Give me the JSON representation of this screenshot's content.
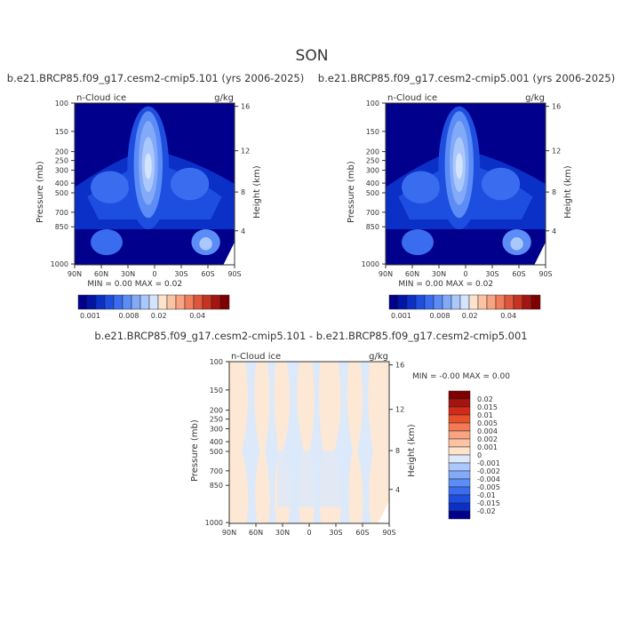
{
  "page_title": "SON",
  "colors": {
    "upper_scale": [
      "#00008c",
      "#0014a6",
      "#0a30c8",
      "#1e4ee0",
      "#3a6cf0",
      "#5c8cf5",
      "#82aaf8",
      "#aac8fb",
      "#d4e4fd",
      "#fde3cc",
      "#fcc3a3",
      "#f8a382",
      "#f07d5c",
      "#e0563a",
      "#c63320",
      "#a41410",
      "#7e0000"
    ],
    "diff_scale": [
      "#fde8d6",
      "#dbe9fb"
    ]
  },
  "chart_data": [
    {
      "type": "heatmap",
      "title": "b.e21.BRCP85.f09_g17.cesm2-cmip5.101 (yrs 2006-2025)",
      "subtitle_left": "n-Cloud ice",
      "subtitle_right": "g/kg",
      "ylabel": "Pressure (mb)",
      "ylabel_right": "Height (km)",
      "xticks": [
        "90N",
        "60N",
        "30N",
        "0",
        "30S",
        "60S",
        "90S"
      ],
      "yticks": [
        "100",
        "150",
        "200",
        "250",
        "300",
        "400",
        "500",
        "700",
        "850",
        "1000"
      ],
      "yticks_right": [
        "16",
        "12",
        "8",
        "4"
      ],
      "stats": "MIN =    0.00   MAX =    0.02",
      "colorbar_labels": [
        "0.001",
        "0.008",
        "0.02",
        "0.04"
      ]
    },
    {
      "type": "heatmap",
      "title": "b.e21.BRCP85.f09_g17.cesm2-cmip5.001 (yrs 2006-2025)",
      "subtitle_left": "n-Cloud ice",
      "subtitle_right": "g/kg",
      "ylabel": "Pressure (mb)",
      "ylabel_right": "Height (km)",
      "xticks": [
        "90N",
        "60N",
        "30N",
        "0",
        "30S",
        "60S",
        "90S"
      ],
      "yticks": [
        "100",
        "150",
        "200",
        "250",
        "300",
        "400",
        "500",
        "700",
        "850",
        "1000"
      ],
      "yticks_right": [
        "16",
        "12",
        "8",
        "4"
      ],
      "stats": "MIN =    0.00   MAX =    0.02",
      "colorbar_labels": [
        "0.001",
        "0.008",
        "0.02",
        "0.04"
      ]
    },
    {
      "type": "heatmap",
      "title": "b.e21.BRCP85.f09_g17.cesm2-cmip5.101 - b.e21.BRCP85.f09_g17.cesm2-cmip5.001",
      "subtitle_left": "n-Cloud ice",
      "subtitle_right": "g/kg",
      "ylabel": "Pressure (mb)",
      "ylabel_right": "Height (km)",
      "xticks": [
        "90N",
        "60N",
        "30N",
        "0",
        "30S",
        "60S",
        "90S"
      ],
      "yticks": [
        "100",
        "150",
        "200",
        "250",
        "300",
        "400",
        "500",
        "700",
        "850",
        "1000"
      ],
      "yticks_right": [
        "16",
        "12",
        "8",
        "4"
      ],
      "stats": "MIN =   -0.00   MAX =    0.00",
      "colorbar_labels": [
        "0.02",
        "0.015",
        "0.01",
        "0.005",
        "0.004",
        "0.002",
        "0.001",
        "0",
        "-0.001",
        "-0.002",
        "-0.004",
        "-0.005",
        "-0.01",
        "-0.015",
        "-0.02"
      ]
    }
  ]
}
